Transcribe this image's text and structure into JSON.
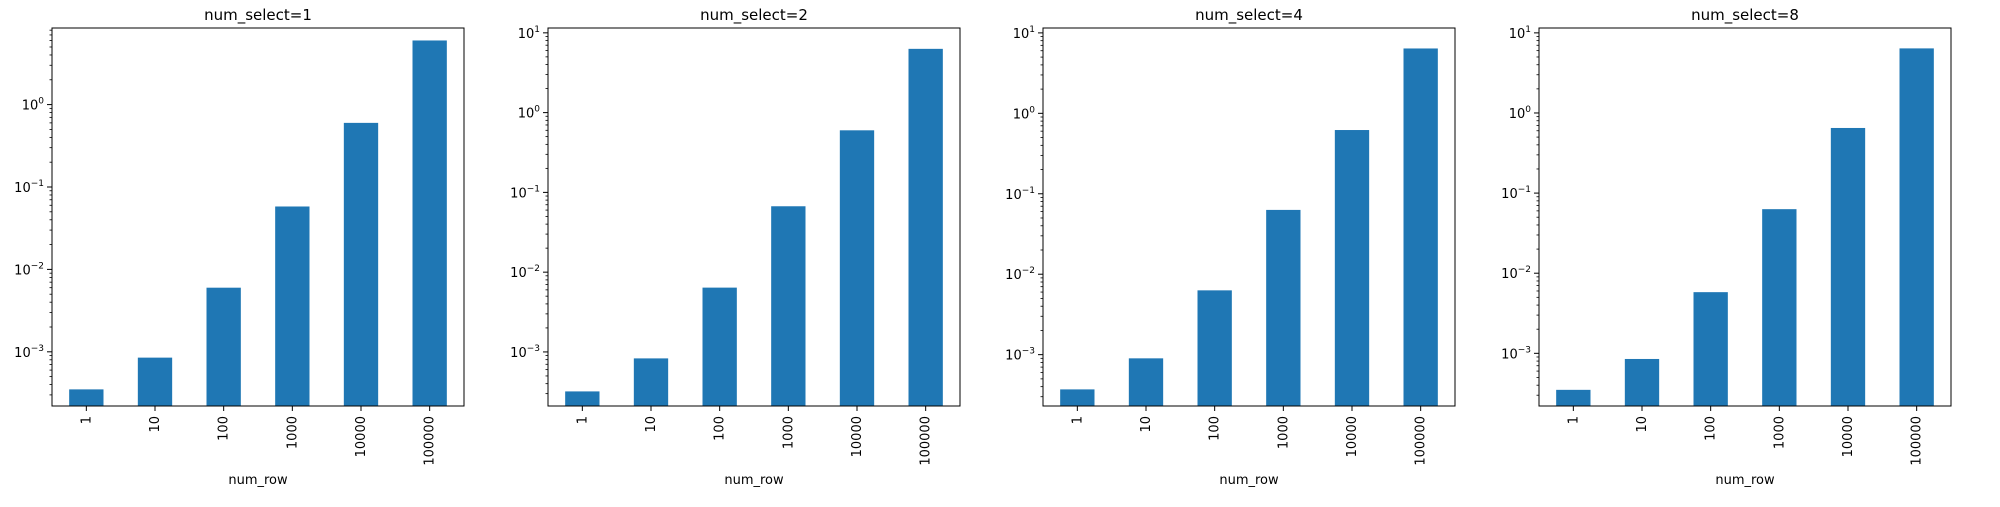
{
  "chart_data": [
    {
      "type": "bar",
      "title": "num_select=1",
      "xlabel": "num_row",
      "ylabel": "",
      "yscale": "log",
      "categories": [
        "1",
        "10",
        "100",
        "1000",
        "10000",
        "100000"
      ],
      "values": [
        0.00035,
        0.00085,
        0.006,
        0.058,
        0.6,
        6.0
      ],
      "ylim": [
        0.00022,
        8.5
      ],
      "yticks": [
        {
          "value": 0.001,
          "base": "10",
          "exp": "−3"
        },
        {
          "value": 0.01,
          "base": "10",
          "exp": "−2"
        },
        {
          "value": 0.1,
          "base": "10",
          "exp": "−1"
        },
        {
          "value": 1,
          "base": "10",
          "exp": "0"
        }
      ]
    },
    {
      "type": "bar",
      "title": "num_select=2",
      "xlabel": "num_row",
      "ylabel": "",
      "yscale": "log",
      "categories": [
        "1",
        "10",
        "100",
        "1000",
        "10000",
        "100000"
      ],
      "values": [
        0.00032,
        0.00083,
        0.0064,
        0.067,
        0.6,
        6.3
      ],
      "ylim": [
        0.00021,
        11.5
      ],
      "yticks": [
        {
          "value": 0.001,
          "base": "10",
          "exp": "−3"
        },
        {
          "value": 0.01,
          "base": "10",
          "exp": "−2"
        },
        {
          "value": 0.1,
          "base": "10",
          "exp": "−1"
        },
        {
          "value": 1,
          "base": "10",
          "exp": "0"
        },
        {
          "value": 10,
          "base": "10",
          "exp": "1"
        }
      ]
    },
    {
      "type": "bar",
      "title": "num_select=4",
      "xlabel": "num_row",
      "ylabel": "",
      "yscale": "log",
      "categories": [
        "1",
        "10",
        "100",
        "1000",
        "10000",
        "100000"
      ],
      "values": [
        0.00037,
        0.0009,
        0.0063,
        0.063,
        0.62,
        6.4
      ],
      "ylim": [
        0.00023,
        11.5
      ],
      "yticks": [
        {
          "value": 0.001,
          "base": "10",
          "exp": "−3"
        },
        {
          "value": 0.01,
          "base": "10",
          "exp": "−2"
        },
        {
          "value": 0.1,
          "base": "10",
          "exp": "−1"
        },
        {
          "value": 1,
          "base": "10",
          "exp": "0"
        },
        {
          "value": 10,
          "base": "10",
          "exp": "1"
        }
      ]
    },
    {
      "type": "bar",
      "title": "num_select=8",
      "xlabel": "num_row",
      "ylabel": "",
      "yscale": "log",
      "categories": [
        "1",
        "10",
        "100",
        "1000",
        "10000",
        "100000"
      ],
      "values": [
        0.00035,
        0.00085,
        0.0058,
        0.063,
        0.65,
        6.4
      ],
      "ylim": [
        0.00022,
        11.5
      ],
      "yticks": [
        {
          "value": 0.001,
          "base": "10",
          "exp": "−3"
        },
        {
          "value": 0.01,
          "base": "10",
          "exp": "−2"
        },
        {
          "value": 0.1,
          "base": "10",
          "exp": "−1"
        },
        {
          "value": 1,
          "base": "10",
          "exp": "0"
        },
        {
          "value": 10,
          "base": "10",
          "exp": "1"
        }
      ]
    }
  ],
  "style": {
    "bar_color": "#1f77b4",
    "axis_color": "#000000",
    "background": "#ffffff"
  }
}
